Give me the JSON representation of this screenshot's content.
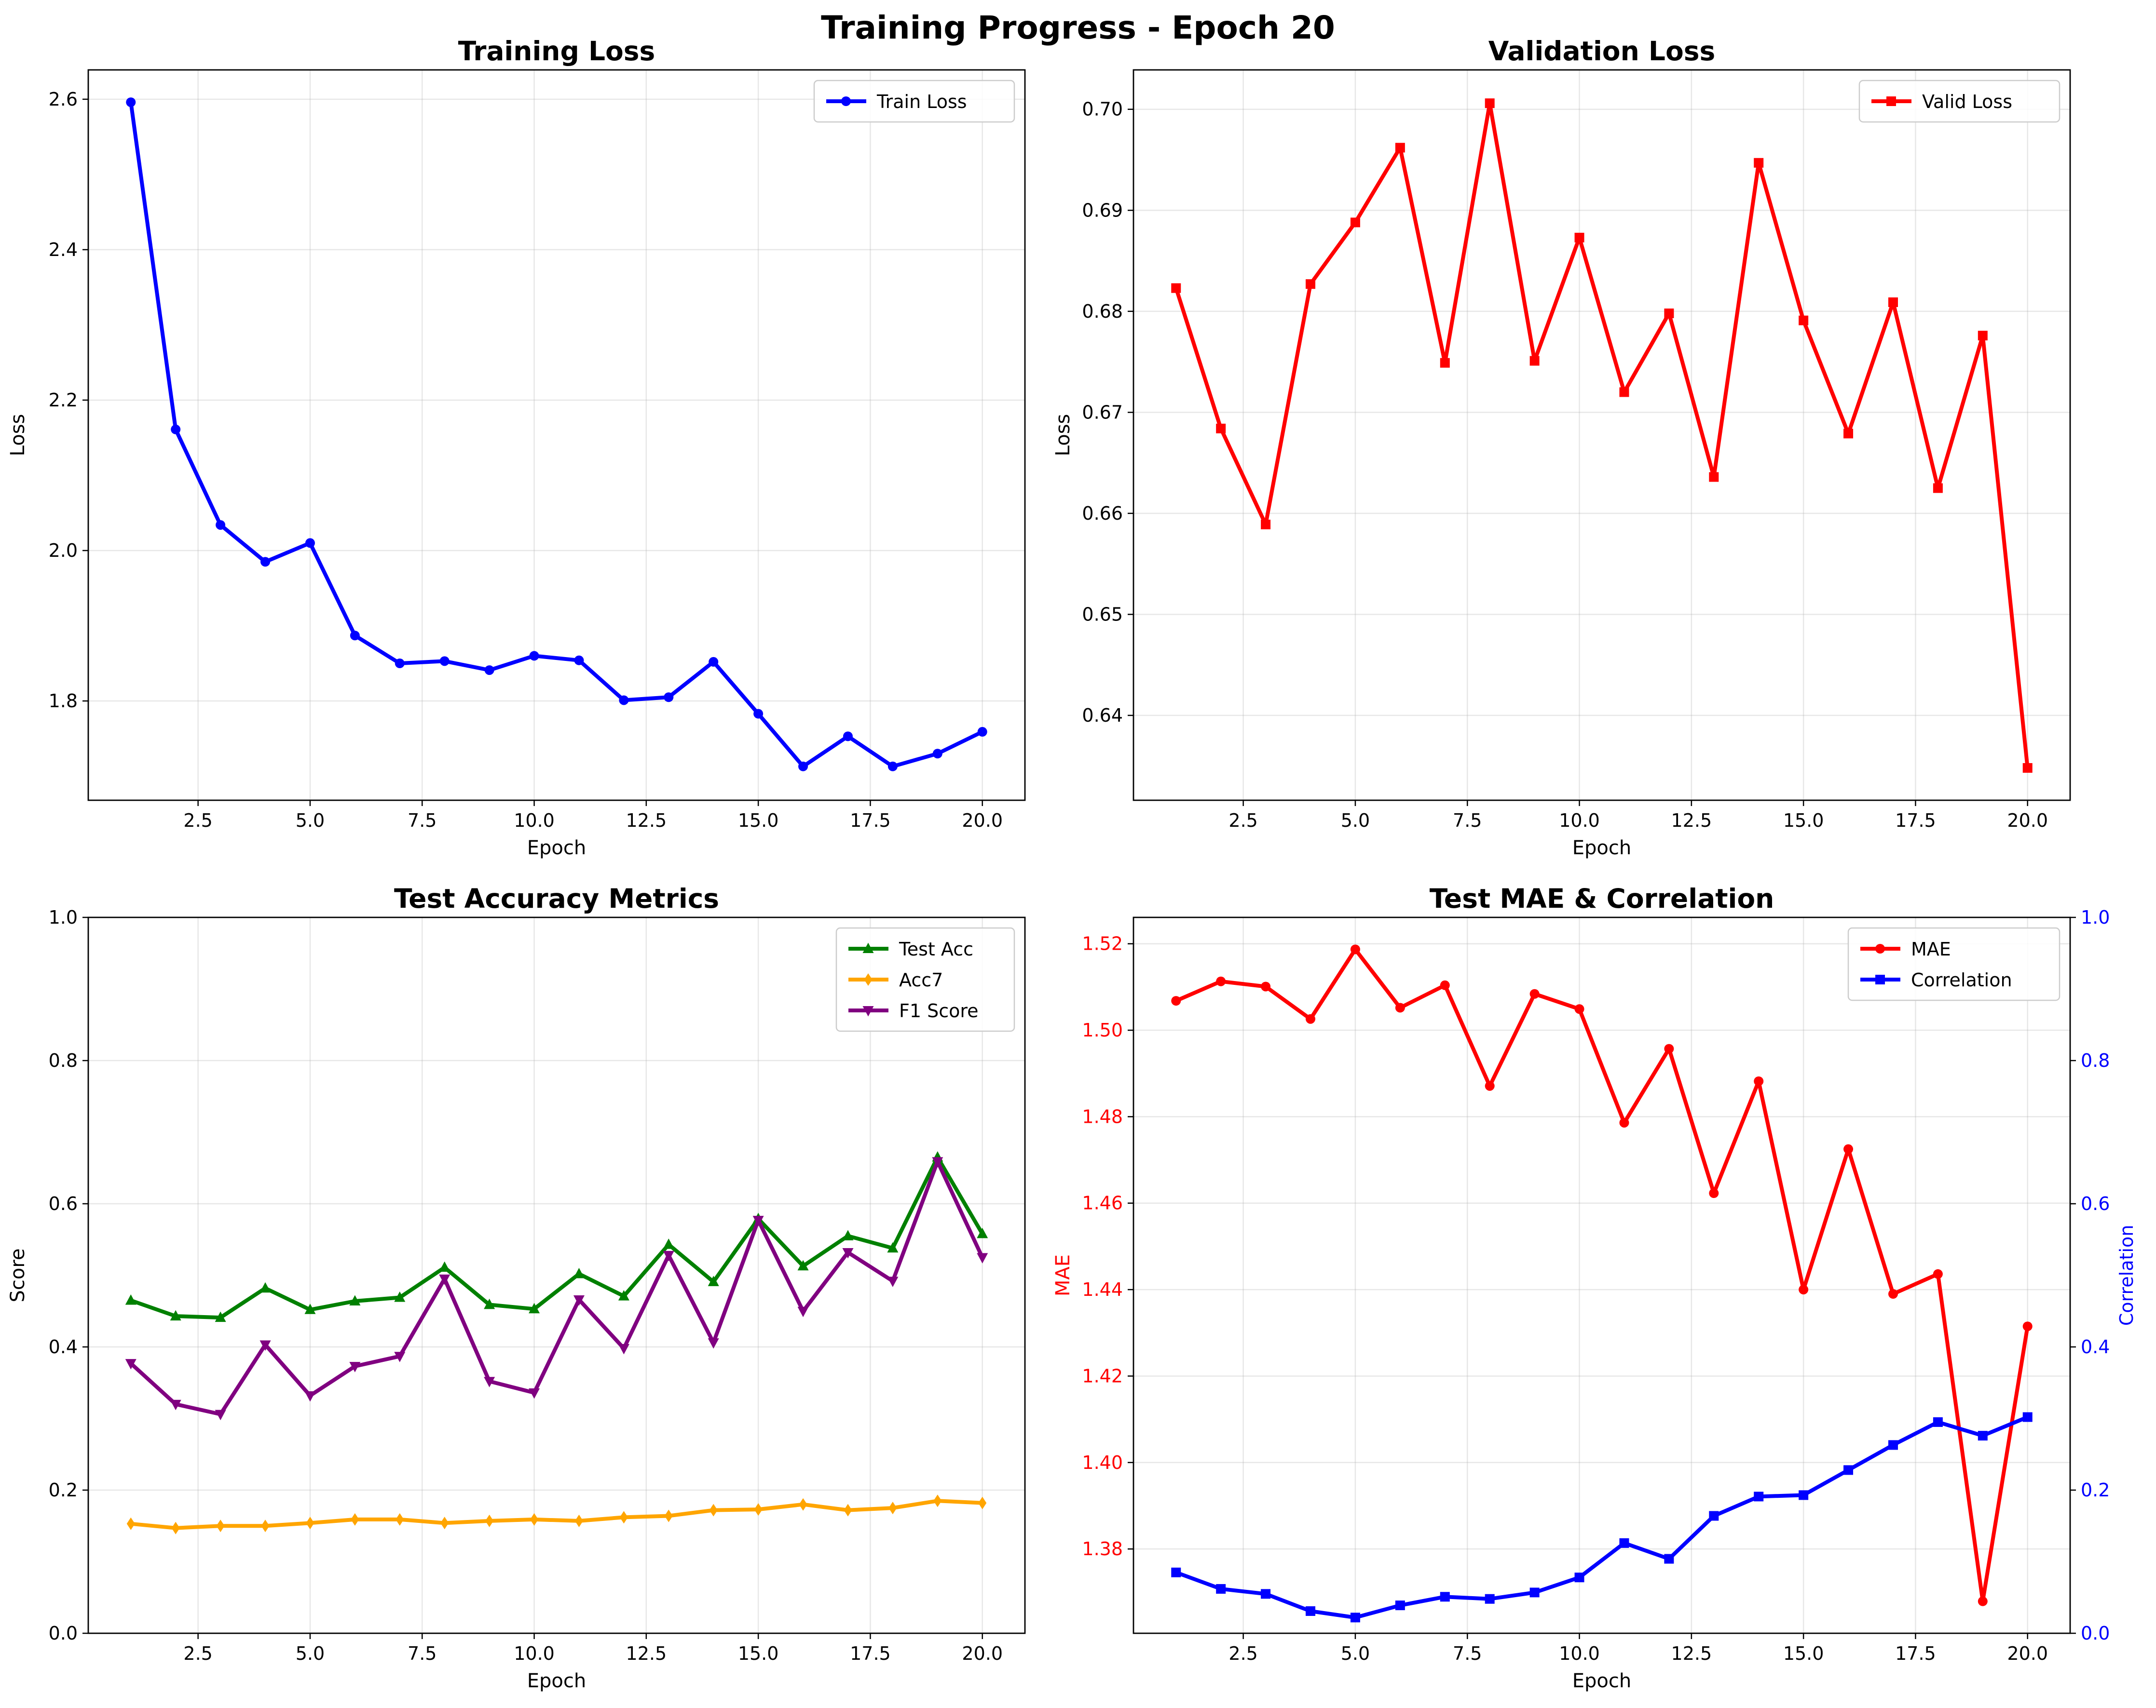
{
  "figure": {
    "suptitle": "Training Progress - Epoch 20"
  },
  "chart_data": [
    {
      "type": "line",
      "title": "Training Loss",
      "xlabel": "Epoch",
      "ylabel": "Loss",
      "x": [
        1,
        2,
        3,
        4,
        5,
        6,
        7,
        8,
        9,
        10,
        11,
        12,
        13,
        14,
        15,
        16,
        17,
        18,
        19,
        20
      ],
      "xlim": [
        0.05,
        20.95
      ],
      "ylim": [
        1.668,
        2.639
      ],
      "xticks": [
        2.5,
        5.0,
        7.5,
        10.0,
        12.5,
        15.0,
        17.5,
        20.0
      ],
      "xtick_labels": [
        "2.5",
        "5.0",
        "7.5",
        "10.0",
        "12.5",
        "15.0",
        "17.5",
        "20.0"
      ],
      "yticks": [
        1.8,
        2.0,
        2.2,
        2.4,
        2.6
      ],
      "ytick_labels": [
        "1.8",
        "2.0",
        "2.2",
        "2.4",
        "2.6"
      ],
      "grid": true,
      "legend": "upper right",
      "series": [
        {
          "name": "Train Loss",
          "color": "#0000ff",
          "marker": "circle",
          "axis": "left",
          "values": [
            2.596,
            2.161,
            2.034,
            1.985,
            2.01,
            1.887,
            1.85,
            1.853,
            1.841,
            1.86,
            1.854,
            1.801,
            1.805,
            1.852,
            1.783,
            1.713,
            1.753,
            1.713,
            1.73,
            1.759
          ]
        }
      ]
    },
    {
      "type": "line",
      "title": "Validation Loss",
      "xlabel": "Epoch",
      "ylabel": "Loss",
      "x": [
        1,
        2,
        3,
        4,
        5,
        6,
        7,
        8,
        9,
        10,
        11,
        12,
        13,
        14,
        15,
        16,
        17,
        18,
        19,
        20
      ],
      "xlim": [
        0.05,
        20.95
      ],
      "ylim": [
        0.6316,
        0.7039
      ],
      "xticks": [
        2.5,
        5.0,
        7.5,
        10.0,
        12.5,
        15.0,
        17.5,
        20.0
      ],
      "xtick_labels": [
        "2.5",
        "5.0",
        "7.5",
        "10.0",
        "12.5",
        "15.0",
        "17.5",
        "20.0"
      ],
      "yticks": [
        0.64,
        0.65,
        0.66,
        0.67,
        0.68,
        0.69,
        0.7
      ],
      "ytick_labels": [
        "0.64",
        "0.65",
        "0.66",
        "0.67",
        "0.68",
        "0.69",
        "0.70"
      ],
      "grid": true,
      "legend": "upper right",
      "series": [
        {
          "name": "Valid Loss",
          "color": "#ff0000",
          "marker": "square",
          "axis": "left",
          "values": [
            0.6823,
            0.6684,
            0.6589,
            0.6827,
            0.6888,
            0.6962,
            0.6749,
            0.7006,
            0.6751,
            0.6873,
            0.672,
            0.6798,
            0.6636,
            0.6947,
            0.6791,
            0.6679,
            0.6809,
            0.6625,
            0.6776,
            0.6348
          ]
        }
      ]
    },
    {
      "type": "line",
      "title": "Test Accuracy Metrics",
      "xlabel": "Epoch",
      "ylabel": "Score",
      "x": [
        1,
        2,
        3,
        4,
        5,
        6,
        7,
        8,
        9,
        10,
        11,
        12,
        13,
        14,
        15,
        16,
        17,
        18,
        19,
        20
      ],
      "xlim": [
        0.05,
        20.95
      ],
      "ylim": [
        0,
        1
      ],
      "xticks": [
        2.5,
        5.0,
        7.5,
        10.0,
        12.5,
        15.0,
        17.5,
        20.0
      ],
      "xtick_labels": [
        "2.5",
        "5.0",
        "7.5",
        "10.0",
        "12.5",
        "15.0",
        "17.5",
        "20.0"
      ],
      "yticks": [
        0.0,
        0.2,
        0.4,
        0.6,
        0.8,
        1.0
      ],
      "ytick_labels": [
        "0.0",
        "0.2",
        "0.4",
        "0.6",
        "0.8",
        "1.0"
      ],
      "grid": true,
      "legend": "upper right",
      "series": [
        {
          "name": "Test Acc",
          "color": "#008000",
          "marker": "triangle-up",
          "axis": "left",
          "values": [
            0.465,
            0.443,
            0.441,
            0.482,
            0.452,
            0.464,
            0.469,
            0.511,
            0.459,
            0.453,
            0.502,
            0.471,
            0.543,
            0.491,
            0.579,
            0.513,
            0.555,
            0.538,
            0.665,
            0.558
          ]
        },
        {
          "name": "Acc7",
          "color": "#ffa500",
          "marker": "diamond",
          "axis": "left",
          "values": [
            0.153,
            0.147,
            0.15,
            0.15,
            0.154,
            0.159,
            0.159,
            0.154,
            0.157,
            0.159,
            0.157,
            0.162,
            0.164,
            0.172,
            0.173,
            0.18,
            0.172,
            0.175,
            0.185,
            0.182
          ]
        },
        {
          "name": "F1 Score",
          "color": "#800080",
          "marker": "triangle-down",
          "axis": "left",
          "values": [
            0.377,
            0.32,
            0.306,
            0.403,
            0.332,
            0.373,
            0.387,
            0.495,
            0.352,
            0.336,
            0.466,
            0.398,
            0.528,
            0.406,
            0.577,
            0.45,
            0.532,
            0.492,
            0.659,
            0.525
          ]
        }
      ]
    },
    {
      "type": "line",
      "title": "Test MAE & Correlation",
      "xlabel": "Epoch",
      "ylabel": "MAE",
      "y2label": "Correlation",
      "x": [
        1,
        2,
        3,
        4,
        5,
        6,
        7,
        8,
        9,
        10,
        11,
        12,
        13,
        14,
        15,
        16,
        17,
        18,
        19,
        20
      ],
      "xlim": [
        0.05,
        20.95
      ],
      "ylim": [
        1.3605,
        1.5261
      ],
      "y2lim": [
        0,
        1
      ],
      "xticks": [
        2.5,
        5.0,
        7.5,
        10.0,
        12.5,
        15.0,
        17.5,
        20.0
      ],
      "xtick_labels": [
        "2.5",
        "5.0",
        "7.5",
        "10.0",
        "12.5",
        "15.0",
        "17.5",
        "20.0"
      ],
      "yticks": [
        1.38,
        1.4,
        1.42,
        1.44,
        1.46,
        1.48,
        1.5,
        1.52
      ],
      "ytick_labels": [
        "1.38",
        "1.40",
        "1.42",
        "1.44",
        "1.46",
        "1.48",
        "1.50",
        "1.52"
      ],
      "y2ticks": [
        0.0,
        0.2,
        0.4,
        0.6,
        0.8,
        1.0
      ],
      "y2tick_labels": [
        "0.0",
        "0.2",
        "0.4",
        "0.6",
        "0.8",
        "1.0"
      ],
      "left_axis_color": "#ff0000",
      "right_axis_color": "#0000ff",
      "grid": true,
      "legend": "upper right",
      "series": [
        {
          "name": "MAE",
          "color": "#ff0000",
          "marker": "circle",
          "axis": "left",
          "values": [
            1.5068,
            1.5113,
            1.5101,
            1.5026,
            1.5187,
            1.5052,
            1.5104,
            1.4871,
            1.5084,
            1.5049,
            1.4786,
            1.4957,
            1.4623,
            1.4882,
            1.44,
            1.4725,
            1.439,
            1.4436,
            1.3679,
            1.4315
          ]
        },
        {
          "name": "Correlation",
          "color": "#0000ff",
          "marker": "square",
          "axis": "right",
          "values": [
            0.085,
            0.062,
            0.055,
            0.031,
            0.022,
            0.039,
            0.051,
            0.048,
            0.057,
            0.078,
            0.126,
            0.104,
            0.164,
            0.191,
            0.193,
            0.228,
            0.263,
            0.295,
            0.276,
            0.302
          ]
        }
      ]
    }
  ]
}
